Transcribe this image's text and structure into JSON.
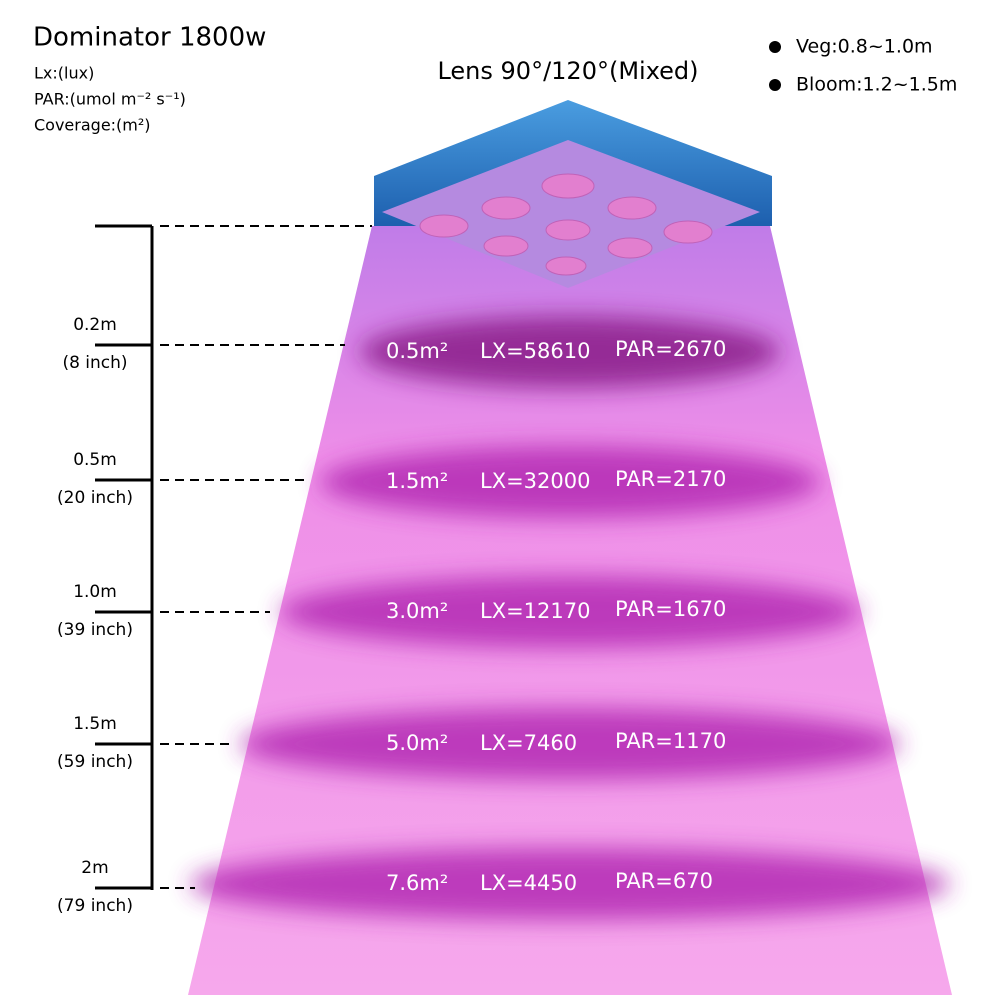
{
  "header": {
    "title": "Dominator 1800w",
    "legend": [
      "Lx:(lux)",
      "PAR:(umol m⁻² s⁻¹)",
      "Coverage:(m²)"
    ],
    "lens": "Lens 90°/120°(Mixed)"
  },
  "notes": [
    "Veg:0.8~1.0m",
    "Bloom:1.2~1.5m"
  ],
  "levels": [
    {
      "distance": "0.2m",
      "inch": "(8 inch)",
      "coverage": "0.5m²",
      "lx": "LX=58610",
      "par": "PAR=2670"
    },
    {
      "distance": "0.5m",
      "inch": "(20 inch)",
      "coverage": "1.5m²",
      "lx": "LX=32000",
      "par": "PAR=2170"
    },
    {
      "distance": "1.0m",
      "inch": "(39 inch)",
      "coverage": "3.0m²",
      "lx": "LX=12170",
      "par": "PAR=1670"
    },
    {
      "distance": "1.5m",
      "inch": "(59 inch)",
      "coverage": "5.0m²",
      "lx": "LX=7460",
      "par": "PAR=1170"
    },
    {
      "distance": "2m",
      "inch": "(79 inch)",
      "coverage": "7.6m²",
      "lx": "LX=4450",
      "par": "PAR=670"
    }
  ]
}
